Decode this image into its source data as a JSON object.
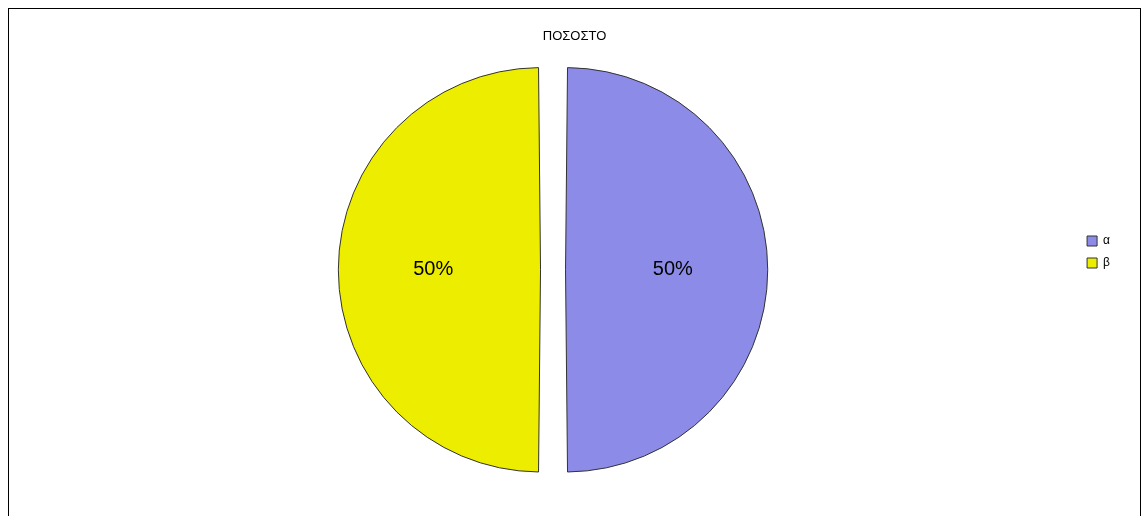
{
  "chart_data": {
    "type": "pie",
    "title": "ΠΟΣΟΣΤΟ",
    "categories": [
      "α",
      "β"
    ],
    "values": [
      50,
      50
    ],
    "colors": [
      "#8c8ce8",
      "#eded00"
    ],
    "value_labels": [
      "50%",
      "50%"
    ],
    "legend": "right"
  }
}
